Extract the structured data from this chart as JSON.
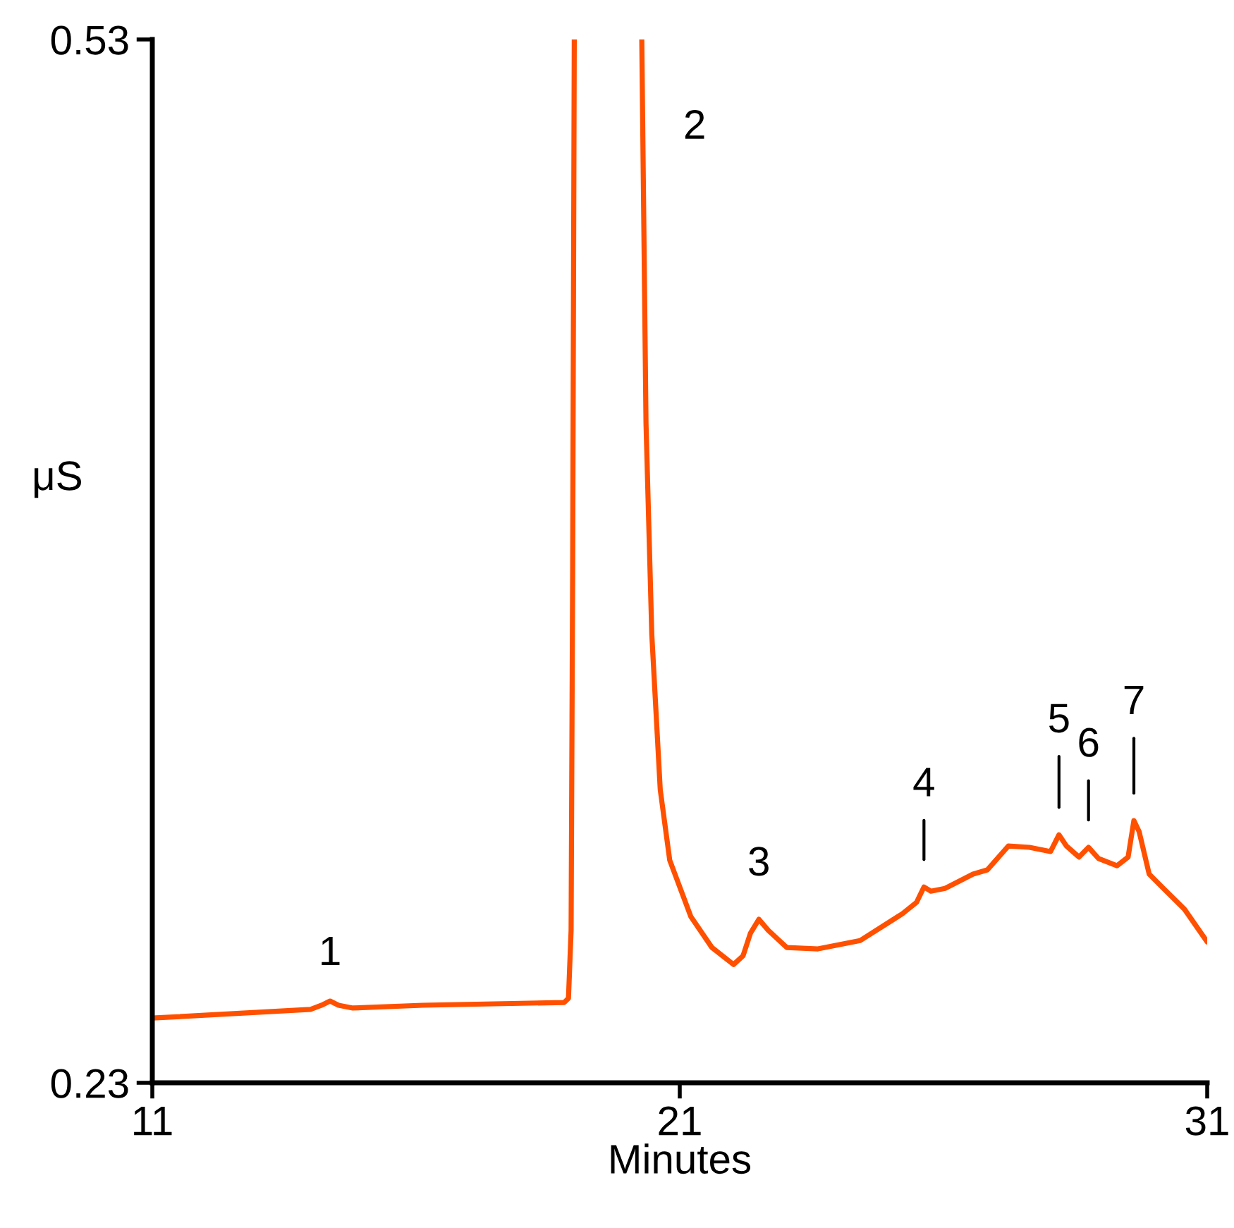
{
  "chart_data": {
    "type": "line",
    "xlabel": "Minutes",
    "ylabel": "μS",
    "xlim": [
      11,
      31
    ],
    "xticks": [
      11,
      21,
      31
    ],
    "ylim": [
      0.23,
      0.53
    ],
    "yticks": [
      0.23,
      0.53
    ],
    "grid": false,
    "legend": false,
    "marker": "none",
    "line_style": "solid",
    "series": [
      {
        "color": "#ff5000",
        "x": [
          11,
          14.0,
          14.21,
          14.37,
          14.53,
          14.8,
          16.13,
          18.81,
          18.89,
          18.94,
          18.97,
          19.0,
          19.64,
          20.28,
          20.36,
          20.47,
          20.63,
          20.81,
          21.21,
          21.61,
          22.02,
          22.2,
          22.34,
          22.5,
          22.68,
          23.03,
          23.62,
          24.42,
          25.22,
          25.49,
          25.63,
          25.76,
          26.03,
          26.56,
          26.83,
          27.23,
          27.63,
          28.03,
          28.19,
          28.33,
          28.57,
          28.75,
          28.94,
          29.29,
          29.5,
          29.61,
          29.71,
          29.9,
          30.17,
          30.57,
          31.0
        ],
        "values": [
          0.2486,
          0.2511,
          0.2523,
          0.2535,
          0.2523,
          0.2515,
          0.2523,
          0.2531,
          0.2543,
          0.2738,
          0.3792,
          0.53,
          null,
          0.53,
          0.4197,
          0.3589,
          0.3143,
          0.294,
          0.2778,
          0.2689,
          0.264,
          0.2665,
          0.273,
          0.277,
          0.2738,
          0.2689,
          0.2685,
          0.2709,
          0.2786,
          0.2819,
          0.2863,
          0.2851,
          0.2859,
          0.29,
          0.2912,
          0.2981,
          0.2977,
          0.2965,
          0.3013,
          0.2981,
          0.2949,
          0.2977,
          0.2945,
          0.2924,
          0.2949,
          0.3054,
          0.3022,
          0.29,
          0.2859,
          0.2799,
          0.2705
        ]
      }
    ],
    "annotations": [
      {
        "text": "1",
        "x": 14.37,
        "y": 0.2535
      },
      {
        "text": "2",
        "x": 20.28,
        "y": 0.53
      },
      {
        "text": "3",
        "x": 22.5,
        "y": 0.277
      },
      {
        "text": "4",
        "x": 25.63,
        "y": 0.2863
      },
      {
        "text": "5",
        "x": 28.19,
        "y": 0.3013
      },
      {
        "text": "6",
        "x": 28.75,
        "y": 0.2977
      },
      {
        "text": "7",
        "x": 29.61,
        "y": 0.3054
      }
    ]
  }
}
